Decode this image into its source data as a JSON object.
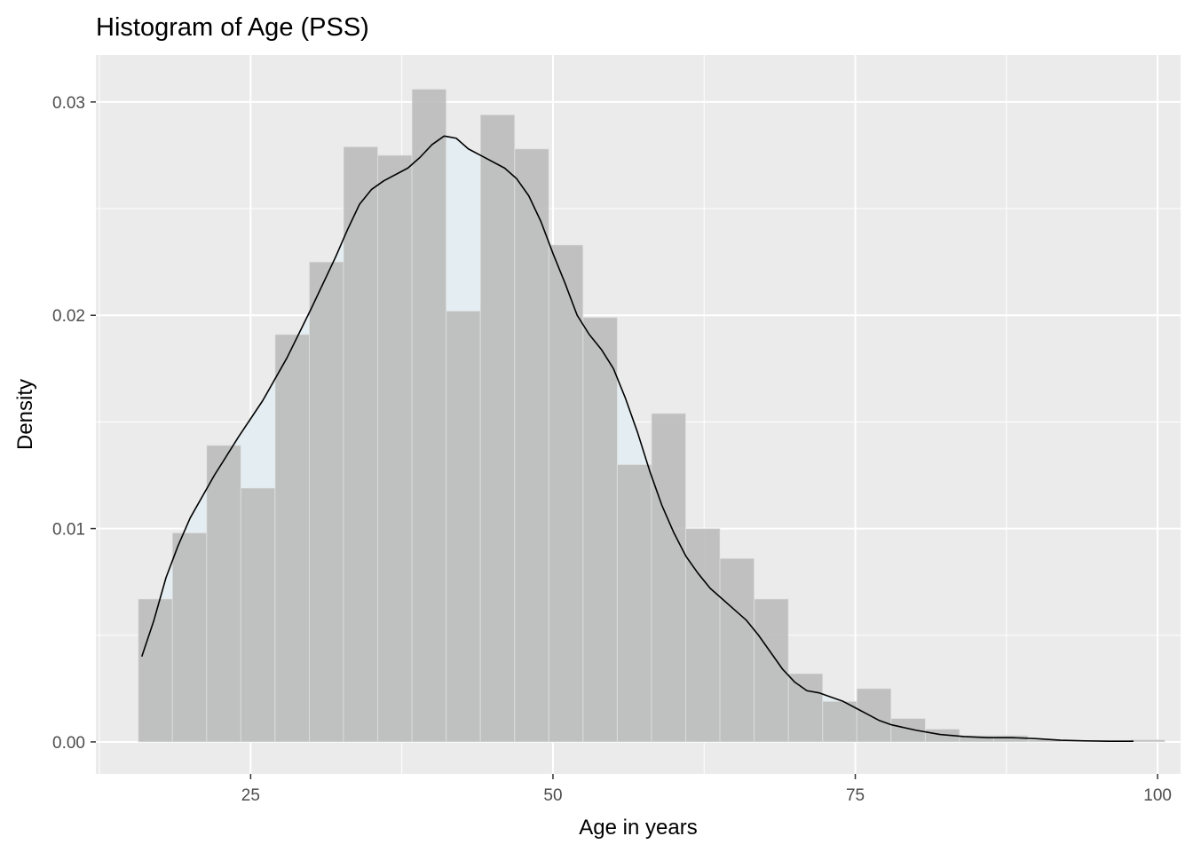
{
  "chart_data": {
    "type": "bar",
    "title": "Histogram of Age (PSS)",
    "xlabel": "Age in years",
    "ylabel": "Density",
    "xlim": [
      12.2,
      101.9
    ],
    "ylim": [
      -0.0015,
      0.0322
    ],
    "x_ticks": [
      25,
      50,
      75,
      100
    ],
    "x_tick_labels": [
      "25",
      "50",
      "75",
      "100"
    ],
    "y_ticks": [
      0,
      0.01,
      0.02,
      0.03
    ],
    "y_tick_labels": [
      "0.00",
      "0.01",
      "0.02",
      "0.03"
    ],
    "grid": true,
    "bin_width": 2.83,
    "bin_start": 15.7,
    "bins": [
      {
        "x_start": 15.7,
        "x_end": 18.53,
        "density": 0.0067
      },
      {
        "x_start": 18.53,
        "x_end": 21.36,
        "density": 0.0098
      },
      {
        "x_start": 21.36,
        "x_end": 24.19,
        "density": 0.0139
      },
      {
        "x_start": 24.19,
        "x_end": 27.02,
        "density": 0.0119
      },
      {
        "x_start": 27.02,
        "x_end": 29.85,
        "density": 0.0191
      },
      {
        "x_start": 29.85,
        "x_end": 32.68,
        "density": 0.0225
      },
      {
        "x_start": 32.68,
        "x_end": 35.51,
        "density": 0.0279
      },
      {
        "x_start": 35.51,
        "x_end": 38.34,
        "density": 0.0275
      },
      {
        "x_start": 38.34,
        "x_end": 41.17,
        "density": 0.0306
      },
      {
        "x_start": 41.17,
        "x_end": 44.0,
        "density": 0.0202
      },
      {
        "x_start": 44.0,
        "x_end": 46.83,
        "density": 0.0294
      },
      {
        "x_start": 46.83,
        "x_end": 49.66,
        "density": 0.0278
      },
      {
        "x_start": 49.66,
        "x_end": 52.49,
        "density": 0.0233
      },
      {
        "x_start": 52.49,
        "x_end": 55.32,
        "density": 0.0199
      },
      {
        "x_start": 55.32,
        "x_end": 58.15,
        "density": 0.013
      },
      {
        "x_start": 58.15,
        "x_end": 60.98,
        "density": 0.0154
      },
      {
        "x_start": 60.98,
        "x_end": 63.81,
        "density": 0.01
      },
      {
        "x_start": 63.81,
        "x_end": 66.64,
        "density": 0.0086
      },
      {
        "x_start": 66.64,
        "x_end": 69.47,
        "density": 0.0067
      },
      {
        "x_start": 69.47,
        "x_end": 72.3,
        "density": 0.0032
      },
      {
        "x_start": 72.3,
        "x_end": 75.13,
        "density": 0.0019
      },
      {
        "x_start": 75.13,
        "x_end": 77.96,
        "density": 0.0025
      },
      {
        "x_start": 77.96,
        "x_end": 80.79,
        "density": 0.0011
      },
      {
        "x_start": 80.79,
        "x_end": 83.62,
        "density": 0.0006
      },
      {
        "x_start": 83.62,
        "x_end": 86.45,
        "density": 0.0003
      },
      {
        "x_start": 86.45,
        "x_end": 89.28,
        "density": 0.0003
      },
      {
        "x_start": 89.28,
        "x_end": 92.11,
        "density": 0.0001
      },
      {
        "x_start": 92.11,
        "x_end": 94.94,
        "density": 5e-05
      },
      {
        "x_start": 94.94,
        "x_end": 97.77,
        "density": 5e-05
      },
      {
        "x_start": 97.77,
        "x_end": 100.6,
        "density": 0.0001
      }
    ],
    "density_curve": {
      "x": [
        16,
        17,
        18,
        19,
        20,
        22,
        24,
        26,
        28,
        30,
        32,
        33,
        34,
        35,
        36,
        38,
        39,
        40,
        41,
        42,
        43,
        44,
        46,
        47,
        48,
        49,
        50,
        51,
        52,
        53,
        54,
        55,
        56,
        57,
        58,
        59,
        60,
        61,
        62,
        63,
        64,
        65,
        66,
        67,
        68,
        69,
        70,
        71,
        72,
        73,
        74,
        75,
        76,
        77,
        78,
        80,
        82,
        84,
        86,
        88,
        90,
        92,
        94,
        96,
        98
      ],
      "y": [
        0.004,
        0.0057,
        0.0077,
        0.0092,
        0.0105,
        0.0125,
        0.0143,
        0.016,
        0.018,
        0.0203,
        0.0227,
        0.024,
        0.0252,
        0.0259,
        0.0263,
        0.0269,
        0.0274,
        0.028,
        0.0284,
        0.0283,
        0.0278,
        0.0275,
        0.0269,
        0.0264,
        0.0256,
        0.0244,
        0.0229,
        0.0215,
        0.02,
        0.0191,
        0.0184,
        0.0175,
        0.0161,
        0.0145,
        0.0127,
        0.0111,
        0.0098,
        0.0087,
        0.0079,
        0.0072,
        0.0067,
        0.0062,
        0.0057,
        0.005,
        0.0042,
        0.0034,
        0.0028,
        0.0024,
        0.0023,
        0.0021,
        0.0019,
        0.0016,
        0.0013,
        0.001,
        0.0008,
        0.00055,
        0.00035,
        0.00025,
        0.0002,
        0.0002,
        0.00015,
        8e-05,
        5e-05,
        3e-05,
        3e-05
      ]
    },
    "colors": {
      "panel_background": "#EBEBEB",
      "grid": "#FFFFFF",
      "histogram_fill": "#B9B9B9",
      "histogram_alpha": 0.85,
      "density_fill": "#E4EEF2",
      "density_line": "#000000"
    }
  }
}
